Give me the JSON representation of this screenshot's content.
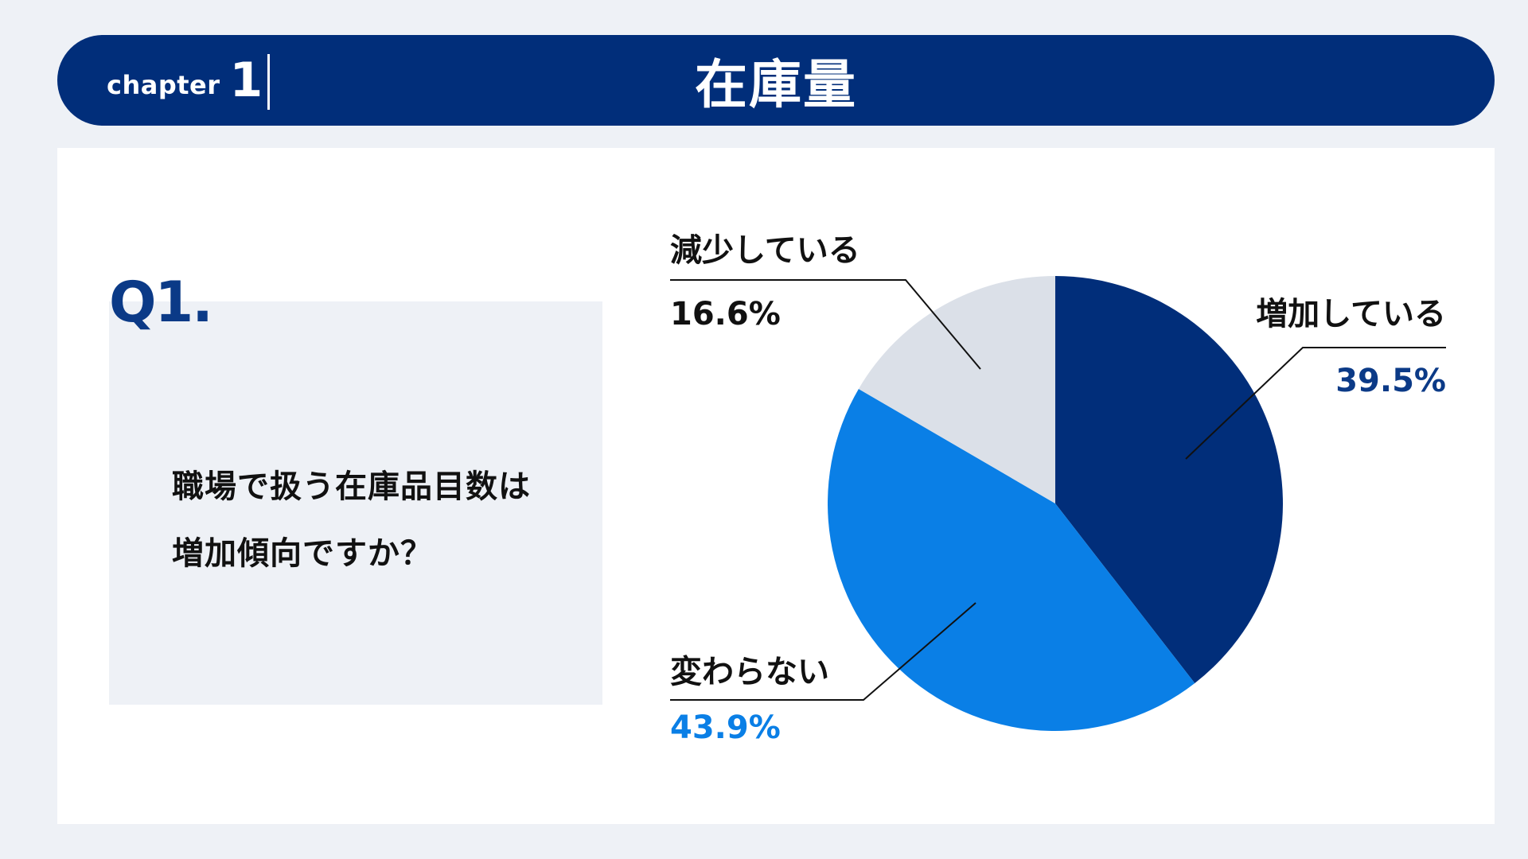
{
  "header": {
    "chapter_label": "chapter",
    "chapter_number": "1",
    "title": "在庫量"
  },
  "question": {
    "number": "Q1.",
    "lines": [
      "職場で扱う在庫品目数は",
      "増加傾向ですか？"
    ]
  },
  "colors": {
    "header_bg": "#012e7a",
    "increase": "#012e7a",
    "unchanged": "#0a7fe6",
    "decrease": "#dbe0e8"
  },
  "chart_data": {
    "type": "pie",
    "title": "",
    "slices": [
      {
        "label": "増加している",
        "value": 39.5,
        "display": "39.5%",
        "color": "#012e7a",
        "value_color": "#0b3a87"
      },
      {
        "label": "変わらない",
        "value": 43.9,
        "display": "43.9%",
        "color": "#0a7fe6",
        "value_color": "#0a7fe6"
      },
      {
        "label": "減少している",
        "value": 16.6,
        "display": "16.6%",
        "color": "#dbe0e8",
        "value_color": "#111111"
      }
    ],
    "start": "12 o'clock",
    "direction": "clockwise"
  }
}
